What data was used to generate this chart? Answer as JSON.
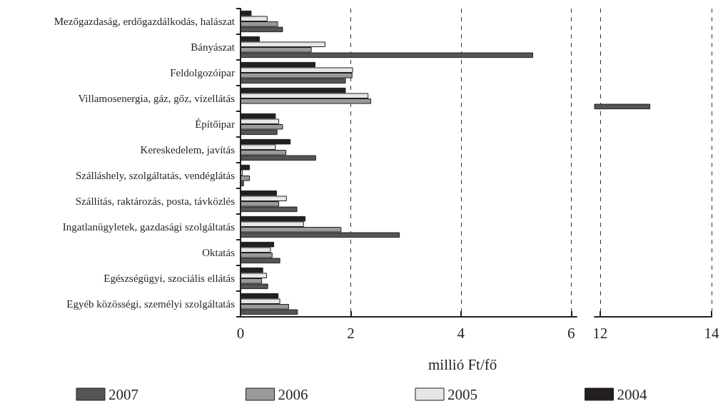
{
  "chart_data": [
    {
      "type": "bar",
      "orientation": "horizontal",
      "xlabel": "millió Ft/fő",
      "categories": [
        "Mezőgazdaság, erdőgazdálkodás, halászat",
        "Bányászat",
        "Feldolgozóipar",
        "Villamosenergia, gáz, gőz, vízellátás",
        "Építőipar",
        "Kereskedelem, javítás",
        "Szálláshely, szolgáltatás, vendéglátás",
        "Szállítás, raktározás, posta, távközlés",
        "Ingatlanügyletek, gazdasági szolgáltatás",
        "Oktatás",
        "Egészségügyi, szociális ellátás",
        "Egyéb közösségi, személyi szolgáltatás"
      ],
      "series": [
        {
          "name": "2007",
          "color": "#555555",
          "values": [
            0.77,
            5.31,
            1.91,
            null,
            0.67,
            1.37,
            0.06,
            1.03,
            2.89,
            0.72,
            0.5,
            1.04
          ]
        },
        {
          "name": "2006",
          "color": "#999999",
          "values": [
            0.68,
            1.29,
            2.03,
            2.37,
            0.77,
            0.83,
            0.17,
            0.7,
            1.83,
            0.58,
            0.39,
            0.88
          ]
        },
        {
          "name": "2005",
          "color": "#e6e6e6",
          "values": [
            0.49,
            1.54,
            2.04,
            2.32,
            0.7,
            0.64,
            0.04,
            0.84,
            1.15,
            0.55,
            0.48,
            0.72
          ]
        },
        {
          "name": "2004",
          "color": "#231f20",
          "values": [
            0.2,
            0.35,
            1.36,
            1.91,
            0.64,
            0.91,
            0.17,
            0.66,
            1.18,
            0.61,
            0.41,
            0.69
          ]
        }
      ],
      "xlim": [
        0,
        6.1
      ],
      "xticks": [
        0,
        2,
        4,
        6
      ],
      "grid": "x",
      "legend": "bottom"
    },
    {
      "type": "bar",
      "orientation": "horizontal",
      "categories": [
        null,
        null,
        null,
        null,
        null,
        null,
        null,
        null,
        null,
        null,
        null,
        null
      ],
      "series": [
        {
          "name": "2007",
          "color": "#555555",
          "values": [
            null,
            null,
            null,
            12.9,
            null,
            null,
            null,
            null,
            null,
            null,
            null,
            null
          ]
        },
        {
          "name": "2006",
          "color": "#999999",
          "values": [
            null,
            null,
            null,
            null,
            null,
            null,
            null,
            null,
            null,
            null,
            null,
            null
          ]
        },
        {
          "name": "2005",
          "color": "#e6e6e6",
          "values": [
            null,
            null,
            null,
            null,
            null,
            null,
            null,
            null,
            null,
            null,
            null,
            null
          ]
        },
        {
          "name": "2004",
          "color": "#231f20",
          "values": [
            null,
            null,
            null,
            null,
            null,
            null,
            null,
            null,
            null,
            null,
            null,
            null
          ]
        }
      ],
      "xlim": [
        11.9,
        14
      ],
      "xticks": [
        12,
        14
      ],
      "grid": "x",
      "tick_labels": "x"
    }
  ]
}
